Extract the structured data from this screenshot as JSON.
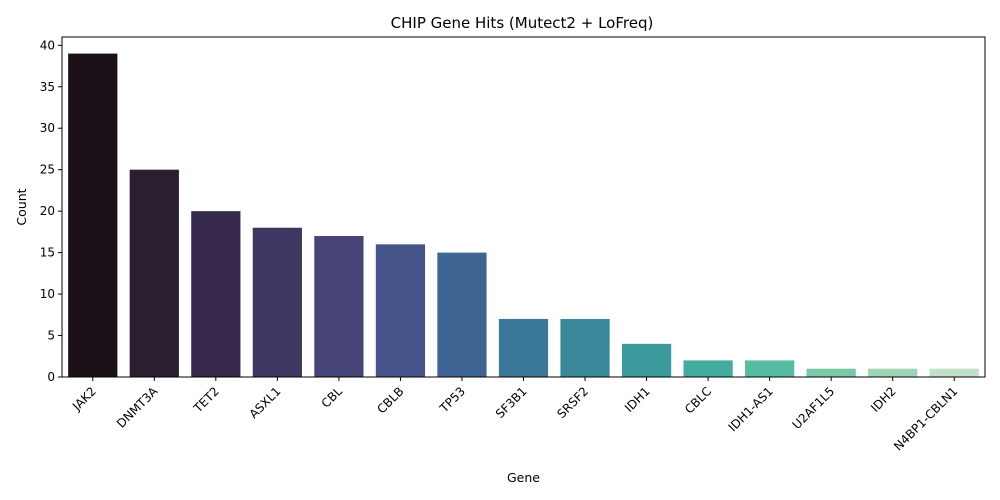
{
  "chart_data": {
    "type": "bar",
    "title": "CHIP Gene Hits (Mutect2 + LoFreq)",
    "xlabel": "Gene",
    "ylabel": "Count",
    "ylim": [
      0,
      41
    ],
    "yticks": [
      0,
      5,
      10,
      15,
      20,
      25,
      30,
      35,
      40
    ],
    "categories": [
      "JAK2",
      "DNMT3A",
      "TET2",
      "ASXL1",
      "CBL",
      "CBLB",
      "TP53",
      "SF3B1",
      "SRSF2",
      "IDH1",
      "CBLC",
      "IDH1-AS1",
      "U2AF1L5",
      "IDH2",
      "N4BP1-CBLN1"
    ],
    "values": [
      39,
      25,
      20,
      18,
      17,
      16,
      15,
      7,
      7,
      4,
      2,
      2,
      1,
      1,
      1
    ],
    "colors": [
      "#1b1018",
      "#2b1e31",
      "#37294b",
      "#403662",
      "#464377",
      "#465389",
      "#3e6594",
      "#3b7798",
      "#3a899b",
      "#3c9a9d",
      "#43ac9f",
      "#55bca2",
      "#79c8a8",
      "#9dd4b4",
      "#bfe1c8"
    ],
    "grid": false,
    "legend": "none"
  }
}
